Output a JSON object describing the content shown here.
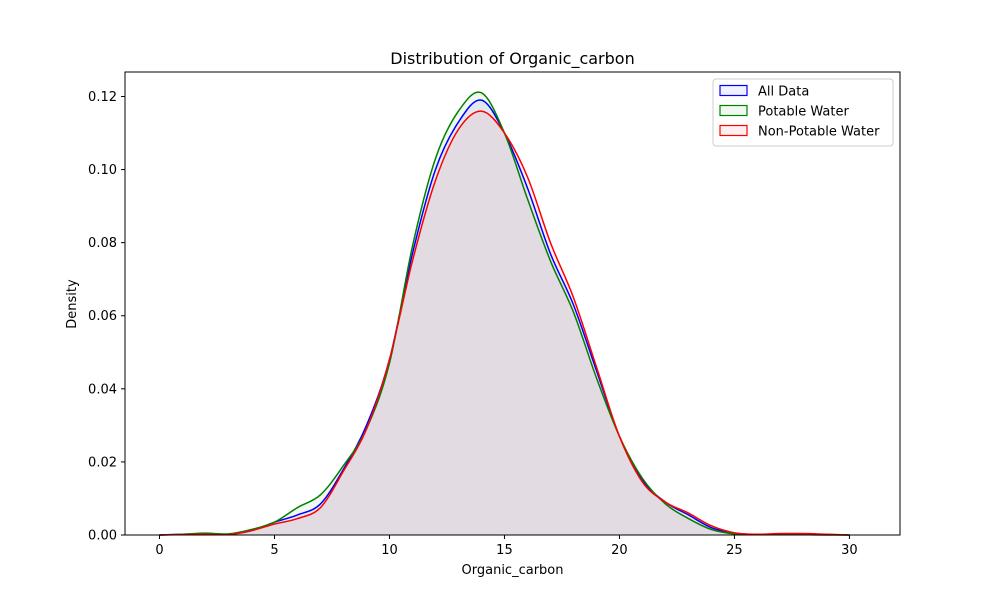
{
  "chart_data": {
    "type": "area",
    "title": "Distribution of Organic_carbon",
    "xlabel": "Organic_carbon",
    "ylabel": "Density",
    "xlim": [
      -1.5,
      32.2
    ],
    "ylim": [
      0,
      0.1267
    ],
    "xticks": [
      0,
      5,
      10,
      15,
      20,
      25,
      30
    ],
    "yticks": [
      0.0,
      0.02,
      0.04,
      0.06,
      0.08,
      0.1,
      0.12
    ],
    "ytick_labels": [
      "0.00",
      "0.02",
      "0.04",
      "0.06",
      "0.08",
      "0.10",
      "0.12"
    ],
    "grid": false,
    "legend_position": "top-right",
    "series": [
      {
        "name": "All Data",
        "color": "#0000ff",
        "fill": "#0000ff",
        "x": [
          0,
          1,
          2,
          3,
          4,
          5,
          6,
          7,
          8,
          9,
          10,
          11,
          12,
          13,
          14,
          15,
          16,
          17,
          18,
          19,
          20,
          21,
          22,
          23,
          24,
          25,
          26,
          27,
          28,
          29,
          30
        ],
        "y": [
          0.0,
          0.0002,
          0.0003,
          0.0002,
          0.0012,
          0.0035,
          0.0055,
          0.0085,
          0.018,
          0.03,
          0.048,
          0.077,
          0.1,
          0.113,
          0.119,
          0.11,
          0.095,
          0.077,
          0.063,
          0.045,
          0.027,
          0.015,
          0.009,
          0.0055,
          0.002,
          0.0005,
          0.0001,
          0.0002,
          0.0002,
          0.0001,
          0.0
        ]
      },
      {
        "name": "Potable Water",
        "color": "#008000",
        "fill": "#008000",
        "x": [
          0,
          1,
          2,
          3,
          4,
          5,
          6,
          7,
          8,
          9,
          10,
          11,
          12,
          13,
          14,
          15,
          16,
          17,
          18,
          19,
          20,
          21,
          22,
          23,
          24,
          25,
          26,
          27,
          28,
          29,
          30
        ],
        "y": [
          0.0,
          0.0002,
          0.0005,
          0.0003,
          0.0015,
          0.0035,
          0.0075,
          0.011,
          0.019,
          0.029,
          0.047,
          0.079,
          0.103,
          0.116,
          0.121,
          0.11,
          0.092,
          0.075,
          0.061,
          0.043,
          0.027,
          0.0155,
          0.0085,
          0.0045,
          0.0015,
          0.0003,
          0.0001,
          0.0001,
          0.0001,
          0.0,
          0.0
        ]
      },
      {
        "name": "Non-Potable Water",
        "color": "#ff0000",
        "fill": "#ff0000",
        "x": [
          0,
          1,
          2,
          3,
          4,
          5,
          6,
          7,
          8,
          9,
          10,
          11,
          12,
          13,
          14,
          15,
          16,
          17,
          18,
          19,
          20,
          21,
          22,
          23,
          24,
          25,
          26,
          27,
          28,
          29,
          30
        ],
        "y": [
          0.0,
          0.0001,
          0.0002,
          0.0001,
          0.0012,
          0.003,
          0.0045,
          0.0075,
          0.0175,
          0.029,
          0.048,
          0.075,
          0.097,
          0.111,
          0.116,
          0.11,
          0.098,
          0.08,
          0.065,
          0.046,
          0.027,
          0.0145,
          0.009,
          0.006,
          0.0025,
          0.0006,
          0.0002,
          0.0004,
          0.0004,
          0.0002,
          0.0
        ]
      }
    ]
  }
}
